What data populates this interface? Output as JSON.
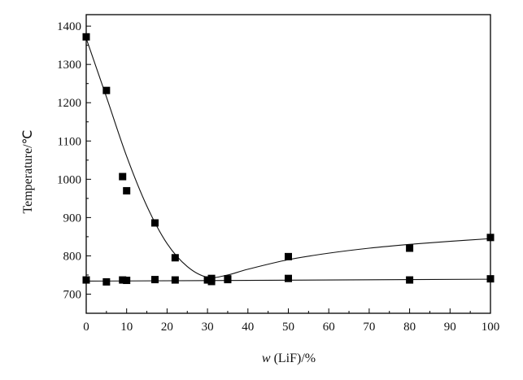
{
  "chart_data": {
    "type": "scatter",
    "title": "",
    "xlabel_var": "w",
    "xlabel_rest": " (LiF)/%",
    "ylabel": "Temperature/℃",
    "xlim": [
      0,
      100
    ],
    "ylim": [
      650,
      1430
    ],
    "xticks": [
      0,
      10,
      20,
      30,
      40,
      50,
      60,
      70,
      80,
      90,
      100
    ],
    "yticks": [
      700,
      800,
      900,
      1000,
      1100,
      1200,
      1300,
      1400
    ],
    "grid": false,
    "legend": "none",
    "series": [
      {
        "points": [
          [
            0,
            1372
          ],
          [
            5,
            1232
          ],
          [
            9,
            1007
          ],
          [
            10,
            970
          ],
          [
            17,
            886
          ],
          [
            22,
            795
          ],
          [
            31,
            741
          ],
          [
            35,
            740
          ],
          [
            50,
            798
          ],
          [
            80,
            820
          ],
          [
            100,
            848
          ]
        ],
        "fit_curve": [
          [
            0,
            1368
          ],
          [
            5,
            1215
          ],
          [
            10,
            1060
          ],
          [
            15,
            930
          ],
          [
            20,
            832
          ],
          [
            25,
            772
          ],
          [
            30,
            744
          ],
          [
            35,
            750
          ],
          [
            40,
            765
          ],
          [
            50,
            790
          ],
          [
            60,
            807
          ],
          [
            70,
            820
          ],
          [
            80,
            830
          ],
          [
            90,
            838
          ],
          [
            100,
            845
          ]
        ]
      },
      {
        "points": [
          [
            0,
            737
          ],
          [
            5,
            732
          ],
          [
            9,
            737
          ],
          [
            10,
            736
          ],
          [
            17,
            738
          ],
          [
            22,
            737
          ],
          [
            30,
            737
          ],
          [
            31,
            733
          ],
          [
            35,
            738
          ],
          [
            50,
            741
          ],
          [
            80,
            737
          ],
          [
            100,
            740
          ]
        ],
        "fit_curve": [
          [
            0,
            734
          ],
          [
            100,
            739
          ]
        ]
      }
    ]
  }
}
